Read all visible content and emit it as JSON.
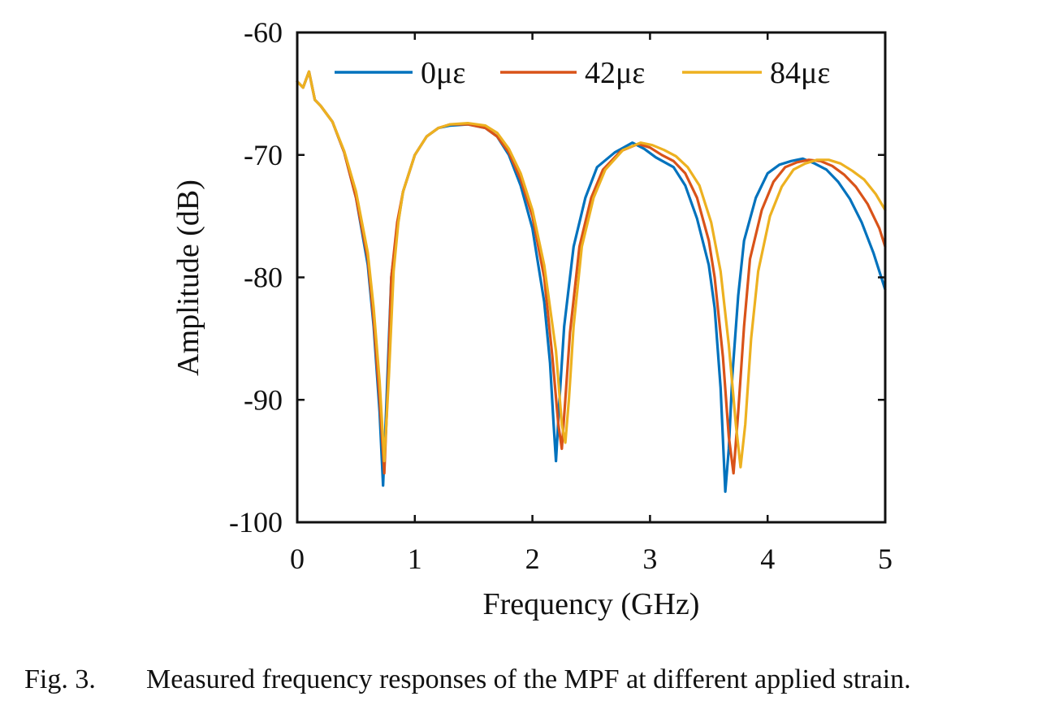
{
  "chart_data": {
    "type": "line",
    "xlabel": "Frequency (GHz)",
    "ylabel": "Amplitude (dB)",
    "xlim": [
      0,
      5
    ],
    "ylim": [
      -100,
      -60
    ],
    "xticks": [
      0,
      1,
      2,
      3,
      4,
      5
    ],
    "xtick_labels": [
      "0",
      "1",
      "2",
      "3",
      "4",
      "5"
    ],
    "yticks": [
      -100,
      -90,
      -80,
      -70,
      -60
    ],
    "ytick_labels": [
      "-100",
      "-90",
      "-80",
      "-70",
      "-60"
    ],
    "grid": false,
    "legend_position": "top",
    "legend_orientation": "horizontal",
    "series": [
      {
        "name": "0με",
        "color": "#0072BD",
        "x": [
          0,
          0.05,
          0.1,
          0.15,
          0.2,
          0.3,
          0.4,
          0.5,
          0.6,
          0.65,
          0.7,
          0.73,
          0.76,
          0.8,
          0.85,
          0.9,
          1.0,
          1.1,
          1.2,
          1.3,
          1.45,
          1.6,
          1.7,
          1.8,
          1.9,
          2.0,
          2.1,
          2.15,
          2.18,
          2.2,
          2.23,
          2.27,
          2.35,
          2.45,
          2.55,
          2.7,
          2.85,
          2.95,
          3.05,
          3.2,
          3.3,
          3.4,
          3.5,
          3.55,
          3.6,
          3.64,
          3.67,
          3.7,
          3.75,
          3.8,
          3.9,
          4.0,
          4.1,
          4.2,
          4.3,
          4.4,
          4.5,
          4.6,
          4.7,
          4.8,
          4.9,
          5.0
        ],
        "y": [
          -64,
          -64.5,
          -63.2,
          -65.5,
          -66,
          -67.3,
          -69.8,
          -73.5,
          -79,
          -84,
          -91,
          -97,
          -90,
          -80,
          -76,
          -73,
          -70,
          -68.5,
          -67.8,
          -67.6,
          -67.5,
          -67.8,
          -68.5,
          -70,
          -72.5,
          -76,
          -82,
          -87,
          -92,
          -95,
          -90,
          -84,
          -77.5,
          -73.5,
          -71,
          -69.8,
          -69,
          -69.5,
          -70.2,
          -71,
          -72.5,
          -75.2,
          -79,
          -82.5,
          -89,
          -97.5,
          -94,
          -88,
          -81.5,
          -77,
          -73.5,
          -71.5,
          -70.8,
          -70.5,
          -70.3,
          -70.7,
          -71.2,
          -72.2,
          -73.6,
          -75.5,
          -78,
          -81
        ]
      },
      {
        "name": "42με",
        "color": "#D95319",
        "x": [
          0,
          0.05,
          0.1,
          0.15,
          0.2,
          0.3,
          0.4,
          0.5,
          0.6,
          0.65,
          0.7,
          0.74,
          0.77,
          0.8,
          0.85,
          0.9,
          1.0,
          1.1,
          1.2,
          1.3,
          1.45,
          1.6,
          1.7,
          1.8,
          1.9,
          2.0,
          2.1,
          2.17,
          2.22,
          2.25,
          2.28,
          2.32,
          2.4,
          2.5,
          2.6,
          2.75,
          2.9,
          3.0,
          3.1,
          3.2,
          3.3,
          3.4,
          3.5,
          3.55,
          3.62,
          3.67,
          3.71,
          3.75,
          3.8,
          3.85,
          3.95,
          4.05,
          4.15,
          4.25,
          4.35,
          4.45,
          4.55,
          4.65,
          4.75,
          4.85,
          4.95,
          5.0
        ],
        "y": [
          -64,
          -64.5,
          -63.2,
          -65.5,
          -66,
          -67.3,
          -69.8,
          -73.5,
          -78.5,
          -83.5,
          -90,
          -96,
          -89,
          -80,
          -75.5,
          -73,
          -70,
          -68.5,
          -67.8,
          -67.5,
          -67.5,
          -67.8,
          -68.5,
          -69.8,
          -72,
          -75,
          -80,
          -86.5,
          -92,
          -94,
          -90,
          -84.5,
          -77.5,
          -73.5,
          -71.2,
          -69.7,
          -69.1,
          -69.4,
          -70,
          -70.5,
          -71.5,
          -73.5,
          -77,
          -80,
          -86.5,
          -93,
          -96,
          -91,
          -84,
          -78.5,
          -74.5,
          -72.2,
          -71,
          -70.6,
          -70.4,
          -70.5,
          -70.9,
          -71.6,
          -72.6,
          -74,
          -76,
          -77.5
        ]
      },
      {
        "name": "84με",
        "color": "#EDB120",
        "x": [
          0,
          0.05,
          0.1,
          0.15,
          0.2,
          0.3,
          0.4,
          0.5,
          0.6,
          0.65,
          0.7,
          0.74,
          0.78,
          0.82,
          0.86,
          0.9,
          1.0,
          1.1,
          1.2,
          1.3,
          1.45,
          1.6,
          1.7,
          1.8,
          1.9,
          2.0,
          2.1,
          2.2,
          2.25,
          2.28,
          2.31,
          2.35,
          2.42,
          2.52,
          2.62,
          2.77,
          2.92,
          3.02,
          3.12,
          3.22,
          3.32,
          3.42,
          3.52,
          3.6,
          3.67,
          3.73,
          3.77,
          3.81,
          3.86,
          3.92,
          4.02,
          4.12,
          4.22,
          4.32,
          4.42,
          4.52,
          4.62,
          4.72,
          4.82,
          4.92,
          5.0
        ],
        "y": [
          -64,
          -64.5,
          -63.2,
          -65.5,
          -66,
          -67.3,
          -69.7,
          -73,
          -78,
          -82.5,
          -88.5,
          -95,
          -88,
          -79.5,
          -75.5,
          -73,
          -70,
          -68.5,
          -67.8,
          -67.5,
          -67.4,
          -67.6,
          -68.2,
          -69.5,
          -71.5,
          -74.5,
          -79,
          -86,
          -92,
          -93.5,
          -90,
          -84,
          -77.5,
          -73.5,
          -71.2,
          -69.6,
          -69,
          -69.2,
          -69.6,
          -70.1,
          -71,
          -72.5,
          -75.5,
          -79.5,
          -85.5,
          -92,
          -95.5,
          -92,
          -85,
          -79.5,
          -75,
          -72.6,
          -71.2,
          -70.7,
          -70.4,
          -70.4,
          -70.7,
          -71.3,
          -72,
          -73.2,
          -74.5
        ]
      }
    ]
  },
  "caption": {
    "label": "Fig. 3.",
    "text": "Measured frequency responses of the MPF at different applied strain."
  }
}
